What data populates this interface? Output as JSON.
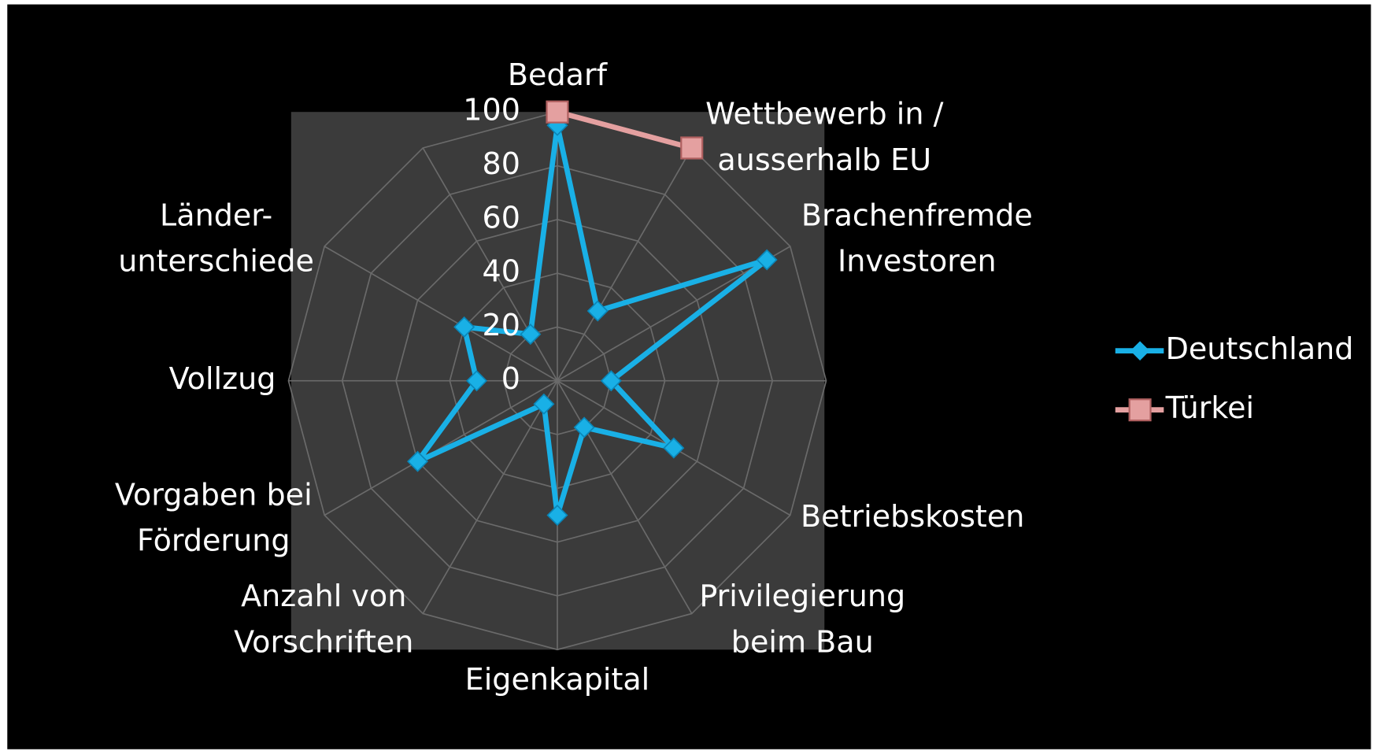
{
  "chart_data": {
    "type": "radar",
    "categories": [
      "Bedarf",
      "Wettbewerb in /\nausserhalb EU",
      "Brachenfremde\nInvestoren",
      null,
      "Betriebskosten",
      "Privilegierung\nbeim Bau",
      "Eigenkapital",
      "Anzahl von\nVorschriften",
      "Vorgaben bei\nFörderung",
      "Vollzug",
      "Länder-\nunterschiede",
      null
    ],
    "series": [
      {
        "name": "Deutschland",
        "color": "#19b0e6",
        "marker": "diamond",
        "values": [
          95,
          30,
          90,
          20,
          50,
          20,
          50,
          10,
          60,
          30,
          40,
          20
        ]
      },
      {
        "name": "Türkei",
        "color": "#e4a0a0",
        "marker": "square",
        "values": [
          100,
          100,
          null,
          null,
          null,
          null,
          null,
          null,
          null,
          null,
          null,
          null
        ]
      }
    ],
    "ylim": [
      0,
      100
    ],
    "yticks": [
      0,
      20,
      40,
      60,
      80,
      100
    ],
    "grid": true,
    "legend": "right"
  }
}
